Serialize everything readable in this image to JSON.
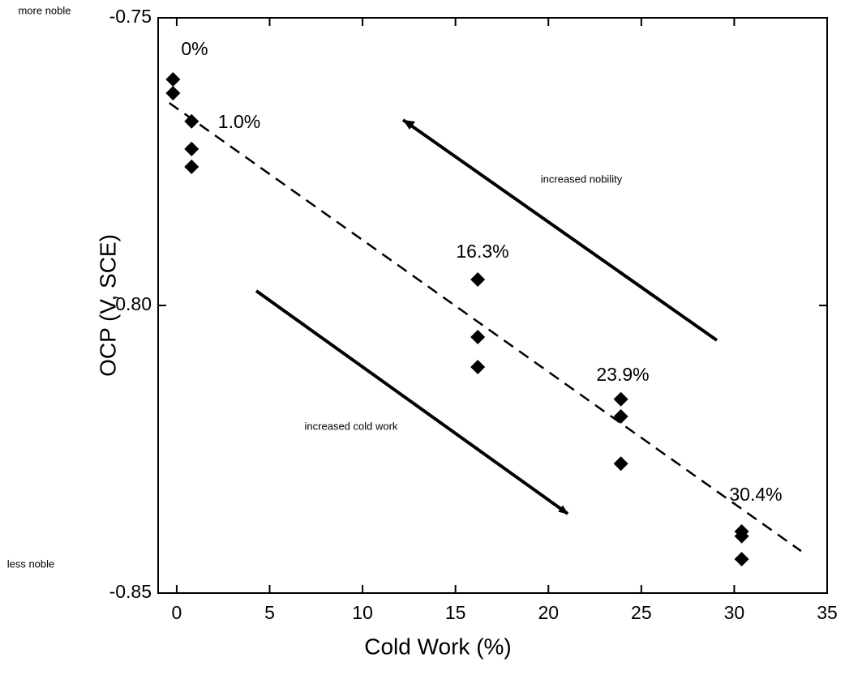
{
  "chart_data": {
    "type": "scatter",
    "x_label": "Cold Work (%)",
    "y_label": "OCP (V, SCE)",
    "x": [
      -0.2,
      -0.2,
      0.8,
      0.8,
      0.8,
      16.2,
      16.2,
      16.2,
      23.9,
      23.9,
      23.9,
      30.4,
      30.4,
      30.4
    ],
    "values": [
      -0.7607,
      -0.7631,
      -0.768,
      -0.7728,
      -0.7759,
      -0.7955,
      -0.8055,
      -0.8107,
      -0.8163,
      -0.8193,
      -0.8275,
      -0.8393,
      -0.8401,
      -0.8441
    ],
    "color": "#000000",
    "trend": {
      "x": [
        -0.4,
        33.6
      ],
      "y": [
        -0.7648,
        -0.8427
      ]
    },
    "xlim": [
      -1,
      35
    ],
    "xticks": [
      0,
      5,
      10,
      15,
      20,
      25,
      30,
      35
    ],
    "ylim": [
      -0.85,
      -0.75
    ],
    "yticks": [
      -0.85,
      {
        "value": -0.8,
        "label": "-0.80"
      },
      -0.75
    ],
    "annotations": [
      "0%",
      "1.0%",
      "16.3%",
      "23.9%",
      "30.4%",
      "increased nobility",
      "increased cold work",
      "more noble",
      "less noble"
    ]
  }
}
